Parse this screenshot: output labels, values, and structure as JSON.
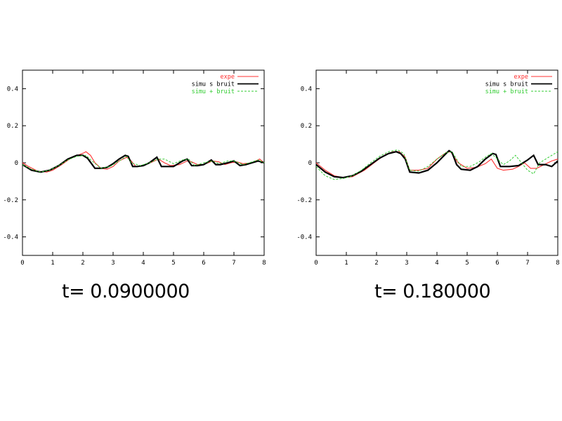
{
  "captions": [
    "t= 0.0900000",
    "t= 0.180000"
  ],
  "chart_data": [
    {
      "type": "line",
      "title": "",
      "xlabel": "",
      "ylabel": "",
      "xlim": [
        0,
        8
      ],
      "ylim": [
        -0.5,
        0.5
      ],
      "xticks": [
        0,
        1,
        2,
        3,
        4,
        5,
        6,
        7,
        8
      ],
      "yticks": [
        0.4,
        0.2,
        0,
        -0.2,
        -0.4
      ],
      "grid": false,
      "legend_position": "top-right",
      "series": [
        {
          "name": "expe",
          "color": "#ff3030",
          "style": "solid",
          "x": [
            0,
            0.2,
            0.5,
            0.8,
            1.0,
            1.3,
            1.6,
            1.9,
            2.05,
            2.1,
            2.25,
            2.4,
            2.6,
            2.8,
            3.0,
            3.2,
            3.45,
            3.6,
            3.75,
            4.0,
            4.3,
            4.5,
            4.7,
            4.9,
            5.2,
            5.45,
            5.6,
            5.8,
            6.0,
            6.3,
            6.5,
            6.7,
            6.9,
            7.1,
            7.3,
            7.6,
            7.85,
            8.0
          ],
          "y": [
            0,
            -0.02,
            -0.045,
            -0.05,
            -0.04,
            -0.01,
            0.025,
            0.045,
            0.055,
            0.06,
            0.04,
            0.0,
            -0.03,
            -0.035,
            -0.02,
            0.01,
            0.03,
            0.01,
            -0.02,
            -0.015,
            0.005,
            0.02,
            0.0,
            -0.015,
            -0.01,
            0.01,
            0.005,
            -0.01,
            -0.01,
            0.01,
            0.005,
            -0.01,
            0.0,
            0.005,
            -0.005,
            0.0,
            0.02,
            0.0
          ]
        },
        {
          "name": "simu s bruit",
          "color": "#000000",
          "style": "thick",
          "x": [
            0,
            0.3,
            0.6,
            0.9,
            1.2,
            1.5,
            1.8,
            2.0,
            2.15,
            2.4,
            2.6,
            2.8,
            3.0,
            3.2,
            3.4,
            3.5,
            3.65,
            3.8,
            4.0,
            4.2,
            4.45,
            4.6,
            4.75,
            5.0,
            5.3,
            5.45,
            5.6,
            5.8,
            6.0,
            6.25,
            6.4,
            6.55,
            6.8,
            7.0,
            7.2,
            7.4,
            7.6,
            7.8,
            8.0
          ],
          "y": [
            -0.01,
            -0.04,
            -0.05,
            -0.04,
            -0.015,
            0.02,
            0.04,
            0.04,
            0.025,
            -0.03,
            -0.03,
            -0.025,
            -0.005,
            0.02,
            0.04,
            0.035,
            -0.02,
            -0.02,
            -0.015,
            0.0,
            0.03,
            -0.02,
            -0.02,
            -0.02,
            0.01,
            0.02,
            -0.015,
            -0.015,
            -0.01,
            0.015,
            -0.01,
            -0.01,
            0.0,
            0.01,
            -0.015,
            -0.01,
            0.0,
            0.01,
            0.0
          ]
        },
        {
          "name": "simu + bruit",
          "color": "#33cc33",
          "style": "dashed",
          "x": [
            0,
            0.3,
            0.6,
            0.9,
            1.2,
            1.5,
            1.8,
            2.1,
            2.3,
            2.6,
            2.9,
            3.2,
            3.45,
            3.6,
            3.9,
            4.2,
            4.5,
            4.7,
            5.0,
            5.3,
            5.5,
            5.7,
            6.0,
            6.3,
            6.5,
            6.8,
            7.0,
            7.3,
            7.5,
            7.8,
            8.0
          ],
          "y": [
            -0.01,
            -0.035,
            -0.05,
            -0.04,
            -0.015,
            0.015,
            0.035,
            0.04,
            0.01,
            -0.03,
            -0.02,
            0.01,
            0.035,
            0.0,
            -0.015,
            0.0,
            0.02,
            0.02,
            -0.005,
            0.015,
            0.02,
            -0.015,
            0.0,
            0.01,
            -0.005,
            0.01,
            0.01,
            -0.01,
            0.0,
            0.015,
            0.0
          ]
        }
      ]
    },
    {
      "type": "line",
      "title": "",
      "xlabel": "",
      "ylabel": "",
      "xlim": [
        0,
        8
      ],
      "ylim": [
        -0.5,
        0.5
      ],
      "xticks": [
        0,
        1,
        2,
        3,
        4,
        5,
        6,
        7,
        8
      ],
      "yticks": [
        0.4,
        0.2,
        0,
        -0.2,
        -0.4
      ],
      "grid": false,
      "legend_position": "top-right",
      "series": [
        {
          "name": "expe",
          "color": "#ff3030",
          "style": "solid",
          "x": [
            0,
            0.3,
            0.6,
            0.9,
            1.2,
            1.6,
            2.0,
            2.3,
            2.55,
            2.75,
            2.95,
            3.1,
            3.4,
            3.7,
            4.0,
            4.3,
            4.45,
            4.7,
            5.0,
            5.3,
            5.6,
            5.8,
            6.0,
            6.2,
            6.5,
            6.7,
            6.9,
            7.1,
            7.3,
            7.55,
            7.8,
            8.0
          ],
          "y": [
            0.0,
            -0.04,
            -0.07,
            -0.08,
            -0.075,
            -0.04,
            0.01,
            0.045,
            0.06,
            0.06,
            0.03,
            -0.04,
            -0.04,
            -0.03,
            0.02,
            0.055,
            0.06,
            0.0,
            -0.03,
            -0.025,
            -0.005,
            0.02,
            -0.03,
            -0.04,
            -0.035,
            -0.02,
            0.0,
            -0.03,
            -0.03,
            -0.01,
            0.01,
            0.02
          ]
        },
        {
          "name": "simu s bruit",
          "color": "#000000",
          "style": "thick",
          "x": [
            0,
            0.3,
            0.6,
            0.9,
            1.2,
            1.5,
            1.8,
            2.1,
            2.4,
            2.65,
            2.8,
            2.95,
            3.1,
            3.4,
            3.7,
            4.0,
            4.3,
            4.4,
            4.5,
            4.65,
            4.8,
            5.1,
            5.35,
            5.6,
            5.85,
            5.95,
            6.1,
            6.4,
            6.7,
            7.0,
            7.2,
            7.35,
            7.6,
            7.8,
            8.0
          ],
          "y": [
            -0.01,
            -0.05,
            -0.075,
            -0.08,
            -0.07,
            -0.045,
            -0.01,
            0.025,
            0.05,
            0.06,
            0.05,
            0.02,
            -0.05,
            -0.055,
            -0.04,
            0.0,
            0.05,
            0.065,
            0.055,
            -0.01,
            -0.035,
            -0.04,
            -0.02,
            0.02,
            0.05,
            0.045,
            -0.02,
            -0.02,
            -0.015,
            0.015,
            0.04,
            -0.01,
            -0.01,
            -0.02,
            0.01
          ]
        },
        {
          "name": "simu + bruit",
          "color": "#33cc33",
          "style": "dashed",
          "x": [
            0,
            0.3,
            0.6,
            0.9,
            1.2,
            1.5,
            1.8,
            2.1,
            2.4,
            2.7,
            2.9,
            3.1,
            3.4,
            3.7,
            4.0,
            4.3,
            4.5,
            4.8,
            5.1,
            5.4,
            5.6,
            5.8,
            6.0,
            6.2,
            6.4,
            6.6,
            6.8,
            7.0,
            7.2,
            7.4,
            7.6,
            7.8,
            8.0
          ],
          "y": [
            -0.02,
            -0.07,
            -0.09,
            -0.085,
            -0.07,
            -0.04,
            0.0,
            0.035,
            0.06,
            0.07,
            0.05,
            -0.04,
            -0.045,
            -0.02,
            0.02,
            0.055,
            0.06,
            -0.02,
            -0.02,
            0.005,
            0.03,
            0.05,
            0.02,
            -0.01,
            0.01,
            0.04,
            0.0,
            -0.04,
            -0.06,
            0.0,
            0.02,
            0.04,
            0.06
          ]
        }
      ]
    }
  ]
}
